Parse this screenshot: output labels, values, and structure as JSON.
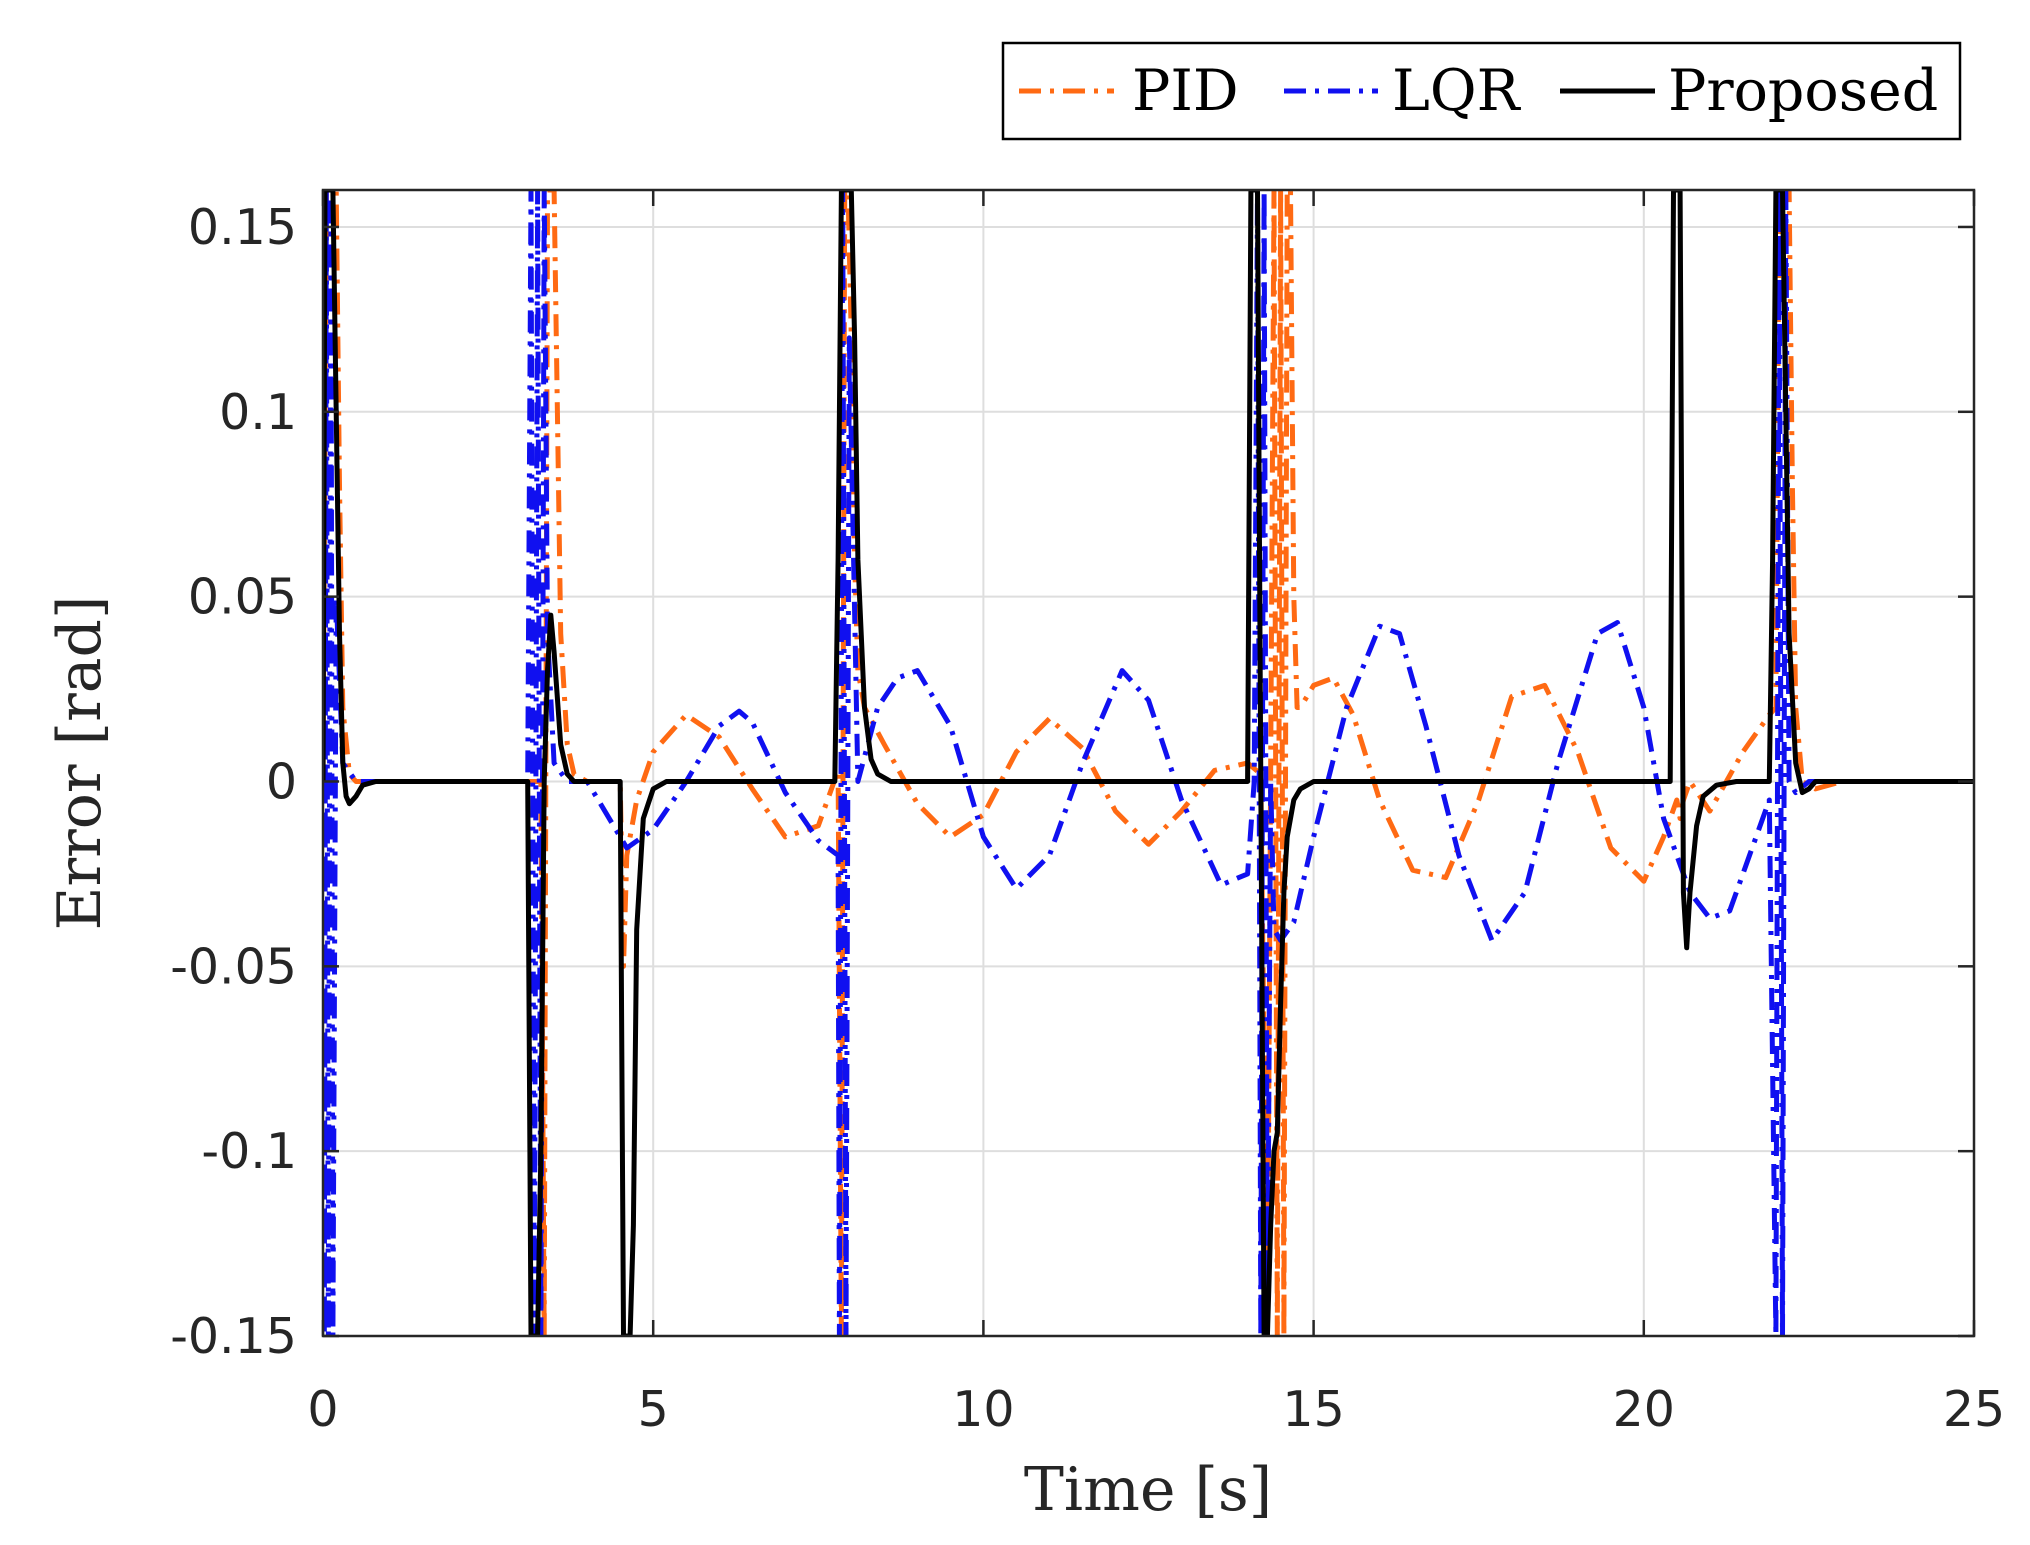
{
  "colors": {
    "pid": "#FF6A13",
    "lqr": "#1010F0",
    "proposed": "#000000",
    "grid": "#DEDEDE",
    "axis": "#262626"
  },
  "legend": {
    "items": [
      {
        "key": "pid",
        "label": "PID",
        "style": "dashdot"
      },
      {
        "key": "lqr",
        "label": "LQR",
        "style": "dashdot"
      },
      {
        "key": "proposed",
        "label": "Proposed",
        "style": "solid"
      }
    ]
  },
  "chart_data": {
    "type": "line",
    "title": "",
    "xlabel": "Time [s]",
    "ylabel": "Error [rad]",
    "xlim": [
      0,
      25
    ],
    "ylim": [
      -0.15,
      0.16
    ],
    "xticks": [
      0,
      5,
      10,
      15,
      20,
      25
    ],
    "xtick_labels": [
      "0",
      "5",
      "10",
      "15",
      "20",
      "25"
    ],
    "yticks": [
      -0.15,
      -0.1,
      -0.05,
      0,
      0.05,
      0.1,
      0.15
    ],
    "ytick_labels": [
      "-0.15",
      "-0.1",
      "-0.05",
      "0",
      "0.05",
      "0.1",
      "0.15"
    ],
    "grid": true,
    "legend_position": "top-right, outside",
    "series": [
      {
        "name": "PID",
        "key": "pid",
        "style": "dashdot",
        "x": [
          0,
          0.05,
          0.1,
          0.2,
          0.25,
          0.3,
          0.4,
          0.5,
          1.0,
          3.2,
          3.3,
          3.35,
          3.4,
          3.45,
          3.5,
          3.55,
          3.6,
          3.7,
          3.8,
          4.0,
          4.5,
          4.55,
          4.6,
          4.75,
          5.0,
          5.5,
          6.0,
          6.5,
          7.0,
          7.5,
          7.8,
          7.85,
          7.9,
          7.95,
          8.0,
          8.05,
          8.1,
          8.2,
          8.5,
          9.0,
          9.5,
          10.0,
          10.5,
          11.0,
          11.5,
          12.0,
          12.5,
          13.0,
          13.5,
          14.0,
          14.2,
          14.3,
          14.4,
          14.45,
          14.5,
          14.55,
          14.6,
          14.65,
          14.7,
          14.75,
          14.8,
          15.0,
          15.3,
          15.6,
          16.0,
          16.5,
          17.0,
          17.5,
          18.0,
          18.5,
          19.0,
          19.5,
          20.0,
          20.3,
          20.5,
          20.55,
          20.6,
          20.7,
          21.0,
          21.5,
          21.9,
          22.0,
          22.05,
          22.1,
          22.15,
          22.2,
          22.25,
          22.3,
          22.4,
          22.6,
          23.0,
          25.0
        ],
        "y": [
          0,
          0.16,
          0.16,
          0.16,
          0.08,
          0.02,
          0.002,
          0,
          0,
          0,
          0,
          -0.15,
          0.16,
          0.16,
          0.16,
          0.1,
          0.04,
          0.01,
          0.002,
          0,
          0,
          -0.05,
          -0.02,
          -0.005,
          0.008,
          0.018,
          0.012,
          -0.002,
          -0.015,
          -0.012,
          0.003,
          -0.15,
          0.16,
          0.16,
          0.12,
          0.06,
          0.03,
          0.02,
          0.01,
          -0.006,
          -0.015,
          -0.009,
          0.008,
          0.017,
          0.009,
          -0.008,
          -0.017,
          -0.008,
          0.003,
          0.005,
          0.002,
          -0.15,
          0.16,
          -0.15,
          0.16,
          -0.15,
          0.16,
          0.16,
          0.05,
          0.02,
          0.02,
          0.026,
          0.028,
          0.018,
          -0.005,
          -0.024,
          -0.026,
          -0.005,
          0.023,
          0.026,
          0.008,
          -0.018,
          -0.027,
          -0.015,
          -0.005,
          -0.01,
          -0.005,
          0.0,
          -0.008,
          0.008,
          0.018,
          0.02,
          0.16,
          0.16,
          0.16,
          0.16,
          0.08,
          0.02,
          0.0,
          -0.002,
          0,
          0
        ]
      },
      {
        "name": "LQR",
        "key": "lqr",
        "style": "dashdot",
        "x": [
          0,
          0.02,
          0.05,
          0.08,
          0.12,
          0.15,
          0.2,
          0.3,
          0.5,
          3.1,
          3.15,
          3.2,
          3.25,
          3.3,
          3.35,
          3.4,
          3.5,
          3.7,
          4.0,
          4.6,
          5.0,
          5.5,
          6.0,
          6.3,
          6.5,
          7.0,
          7.5,
          7.8,
          7.82,
          7.87,
          7.92,
          7.97,
          8.1,
          8.4,
          8.7,
          9.0,
          9.5,
          10.0,
          10.5,
          11.0,
          11.5,
          12.1,
          12.5,
          13.0,
          13.6,
          14.0,
          14.1,
          14.15,
          14.2,
          14.25,
          14.3,
          14.35,
          14.4,
          14.5,
          14.7,
          15.0,
          15.5,
          16.0,
          16.3,
          16.7,
          17.2,
          17.7,
          18.2,
          18.7,
          19.3,
          19.6,
          20.0,
          20.3,
          20.5,
          20.7,
          21.0,
          21.3,
          21.6,
          21.9,
          22.0,
          22.05,
          22.1,
          22.15,
          22.2,
          22.3,
          22.5,
          23.0,
          25.0
        ],
        "y": [
          0,
          -0.15,
          0.16,
          -0.15,
          0.16,
          -0.15,
          0.05,
          0.005,
          0,
          0,
          0.16,
          -0.15,
          0.16,
          -0.15,
          0.16,
          0.04,
          0.005,
          0,
          0,
          -0.018,
          -0.013,
          0.0,
          0.015,
          0.019,
          0.016,
          -0.003,
          -0.016,
          -0.02,
          -0.15,
          0.16,
          -0.15,
          0.12,
          0.0,
          0.02,
          0.028,
          0.03,
          0.015,
          -0.015,
          -0.029,
          -0.02,
          0.005,
          0.03,
          0.022,
          -0.005,
          -0.028,
          -0.025,
          0.0,
          0.16,
          -0.15,
          0.16,
          -0.15,
          0.0,
          -0.04,
          -0.043,
          -0.038,
          -0.015,
          0.02,
          0.042,
          0.04,
          0.015,
          -0.02,
          -0.043,
          -0.03,
          0.005,
          0.04,
          0.043,
          0.02,
          -0.01,
          -0.02,
          -0.03,
          -0.037,
          -0.035,
          -0.02,
          -0.005,
          -0.15,
          0.16,
          -0.15,
          0.16,
          0.0,
          -0.003,
          0,
          0,
          0
        ]
      },
      {
        "name": "Proposed",
        "key": "proposed",
        "style": "solid",
        "x": [
          0,
          0.03,
          0.08,
          0.15,
          0.2,
          0.25,
          0.3,
          0.35,
          0.4,
          0.5,
          0.6,
          0.8,
          3.1,
          3.15,
          3.2,
          3.25,
          3.3,
          3.35,
          3.4,
          3.45,
          3.5,
          3.6,
          3.7,
          3.8,
          4.0,
          4.5,
          4.55,
          4.6,
          4.65,
          4.7,
          4.75,
          4.85,
          5.0,
          5.2,
          5.5,
          7.75,
          7.8,
          7.85,
          7.9,
          7.95,
          8.0,
          8.05,
          8.1,
          8.2,
          8.3,
          8.4,
          8.6,
          9.0,
          14.0,
          14.05,
          14.1,
          14.15,
          14.2,
          14.25,
          14.3,
          14.35,
          14.4,
          14.45,
          14.5,
          14.55,
          14.6,
          14.7,
          14.8,
          15.0,
          15.2,
          20.4,
          20.45,
          20.5,
          20.55,
          20.6,
          20.65,
          20.7,
          20.8,
          20.9,
          21.1,
          21.4,
          21.9,
          21.95,
          22.0,
          22.05,
          22.1,
          22.15,
          22.2,
          22.3,
          22.4,
          22.5,
          22.6,
          23.0,
          25.0
        ],
        "y": [
          0,
          0.16,
          0.16,
          0.16,
          0.1,
          0.04,
          0.005,
          -0.004,
          -0.006,
          -0.004,
          -0.001,
          0,
          0,
          -0.15,
          -0.15,
          -0.15,
          -0.1,
          0.0,
          0.03,
          0.045,
          0.035,
          0.01,
          0.002,
          0,
          0,
          0,
          -0.15,
          -0.15,
          -0.15,
          -0.12,
          -0.04,
          -0.01,
          -0.002,
          0,
          0,
          0,
          0.06,
          0.16,
          0.16,
          0.16,
          0.16,
          0.12,
          0.06,
          0.02,
          0.006,
          0.002,
          0,
          0,
          0,
          0.16,
          0.16,
          0.16,
          0.0,
          -0.15,
          -0.15,
          -0.12,
          -0.1,
          -0.095,
          -0.06,
          -0.03,
          -0.015,
          -0.005,
          -0.002,
          0,
          0,
          0,
          0.16,
          0.16,
          0.16,
          -0.03,
          -0.045,
          -0.03,
          -0.012,
          -0.004,
          -0.001,
          0,
          0,
          0.06,
          0.16,
          0.16,
          0.16,
          0.1,
          0.04,
          0.005,
          -0.003,
          -0.002,
          0,
          0,
          0
        ]
      }
    ]
  }
}
